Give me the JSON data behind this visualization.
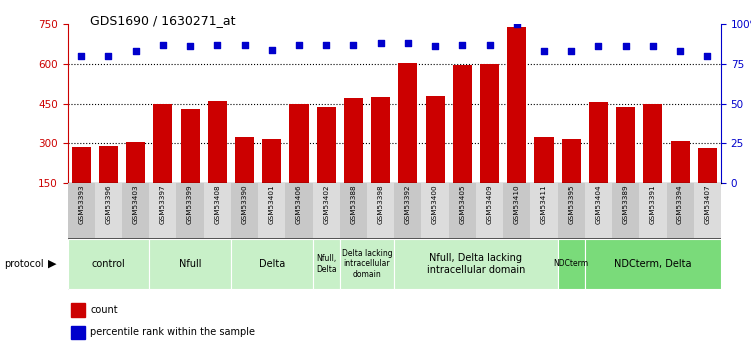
{
  "title": "GDS1690 / 1630271_at",
  "samples": [
    "GSM53393",
    "GSM53396",
    "GSM53403",
    "GSM53397",
    "GSM53399",
    "GSM53408",
    "GSM53390",
    "GSM53401",
    "GSM53406",
    "GSM53402",
    "GSM53388",
    "GSM53398",
    "GSM53392",
    "GSM53400",
    "GSM53405",
    "GSM53409",
    "GSM53410",
    "GSM53411",
    "GSM53395",
    "GSM53404",
    "GSM53389",
    "GSM53391",
    "GSM53394",
    "GSM53407"
  ],
  "counts": [
    285,
    290,
    305,
    450,
    430,
    460,
    325,
    315,
    450,
    435,
    470,
    475,
    605,
    480,
    595,
    600,
    740,
    325,
    315,
    455,
    435,
    450,
    310,
    280
  ],
  "percentile_pct": [
    80,
    80,
    83,
    87,
    86,
    87,
    87,
    84,
    87,
    87,
    87,
    88,
    88,
    86,
    87,
    87,
    100,
    83,
    83,
    86,
    86,
    86,
    83,
    80
  ],
  "ylim_left": [
    150,
    750
  ],
  "yticks_left": [
    150,
    300,
    450,
    600,
    750
  ],
  "yticks_right": [
    0,
    25,
    50,
    75,
    100
  ],
  "grid_values": [
    300,
    450,
    600
  ],
  "bar_color": "#cc0000",
  "dot_color": "#0000cc",
  "groups": [
    {
      "label": "control",
      "start": 0,
      "end": 2,
      "color": "#c8f0c8"
    },
    {
      "label": "Nfull",
      "start": 3,
      "end": 5,
      "color": "#c8f0c8"
    },
    {
      "label": "Delta",
      "start": 6,
      "end": 8,
      "color": "#c8f0c8"
    },
    {
      "label": "Nfull,\nDelta",
      "start": 9,
      "end": 9,
      "color": "#c8f0c8"
    },
    {
      "label": "Delta lacking\nintracellular\ndomain",
      "start": 10,
      "end": 11,
      "color": "#c8f0c8"
    },
    {
      "label": "Nfull, Delta lacking\nintracellular domain",
      "start": 12,
      "end": 17,
      "color": "#c8f0c8"
    },
    {
      "label": "NDCterm",
      "start": 18,
      "end": 18,
      "color": "#7adb7a"
    },
    {
      "label": "NDCterm, Delta",
      "start": 19,
      "end": 23,
      "color": "#7adb7a"
    }
  ]
}
